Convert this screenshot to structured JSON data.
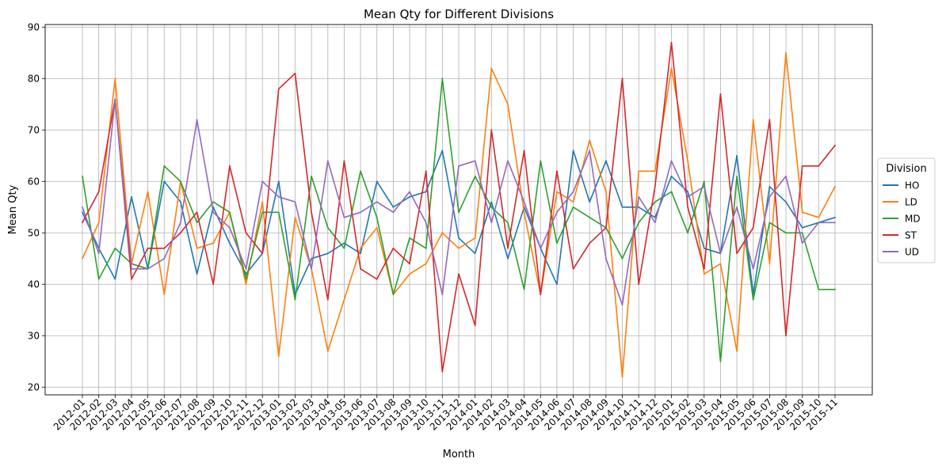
{
  "chart_data": {
    "type": "line",
    "title": "Mean Qty for Different Divisions",
    "xlabel": "Month",
    "ylabel": "Mean Qty",
    "ylim": [
      18.5,
      90.5
    ],
    "yticks": [
      20,
      30,
      40,
      50,
      60,
      70,
      80,
      90
    ],
    "grid": true,
    "legend_title": "Division",
    "legend_position": "center right, outside plot",
    "categories": [
      "2012-01",
      "2012-02",
      "2012-03",
      "2012-04",
      "2012-05",
      "2012-06",
      "2012-07",
      "2012-08",
      "2012-09",
      "2012-10",
      "2012-11",
      "2012-12",
      "2013-01",
      "2013-02",
      "2013-03",
      "2013-04",
      "2013-05",
      "2013-06",
      "2013-07",
      "2013-08",
      "2013-09",
      "2013-10",
      "2013-11",
      "2013-12",
      "2014-01",
      "2014-02",
      "2014-03",
      "2014-04",
      "2014-05",
      "2014-06",
      "2014-07",
      "2014-08",
      "2014-09",
      "2014-10",
      "2014-11",
      "2014-12",
      "2015-01",
      "2015-02",
      "2015-03",
      "2015-04",
      "2015-05",
      "2015-06",
      "2015-07",
      "2015-08",
      "2015-09",
      "2015-10",
      "2015-11"
    ],
    "series": [
      {
        "name": "HO",
        "color": "#1f77b4",
        "values": [
          54,
          47,
          41,
          57,
          43,
          60,
          56,
          42,
          55,
          48,
          42,
          46,
          60,
          38,
          45,
          46,
          48,
          46,
          60,
          55,
          57,
          58,
          66,
          49,
          46,
          56,
          45,
          55,
          47,
          40,
          66,
          56,
          64,
          55,
          55,
          53,
          61,
          58,
          47,
          46,
          65,
          38,
          59,
          56,
          51,
          52,
          53
        ]
      },
      {
        "name": "LD",
        "color": "#ff7f0e",
        "values": [
          45,
          52,
          80,
          44,
          58,
          38,
          60,
          47,
          48,
          54,
          40,
          56,
          26,
          53,
          43,
          27,
          37,
          47,
          51,
          38,
          42,
          44,
          50,
          47,
          49,
          82,
          75,
          54,
          38,
          58,
          56,
          68,
          58,
          22,
          62,
          62,
          82,
          64,
          42,
          44,
          27,
          72,
          44,
          85,
          54,
          53,
          59
        ]
      },
      {
        "name": "MD",
        "color": "#2ca02c",
        "values": [
          61,
          41,
          47,
          44,
          43,
          63,
          60,
          52,
          56,
          54,
          41,
          54,
          54,
          37,
          61,
          51,
          47,
          62,
          53,
          38,
          49,
          47,
          80,
          54,
          61,
          55,
          52,
          39,
          64,
          48,
          55,
          53,
          51,
          45,
          52,
          56,
          58,
          50,
          60,
          25,
          61,
          37,
          52,
          50,
          50,
          39,
          39
        ]
      },
      {
        "name": "ST",
        "color": "#d62728",
        "values": [
          52,
          58,
          76,
          41,
          47,
          47,
          50,
          54,
          40,
          63,
          50,
          46,
          78,
          81,
          54,
          37,
          64,
          43,
          41,
          47,
          44,
          62,
          23,
          42,
          32,
          70,
          47,
          66,
          38,
          62,
          43,
          48,
          51,
          80,
          40,
          59,
          87,
          55,
          43,
          77,
          46,
          51,
          72,
          30,
          63,
          63,
          67
        ]
      },
      {
        "name": "UD",
        "color": "#9467bd",
        "values": [
          55,
          46,
          76,
          43,
          43,
          45,
          52,
          72,
          54,
          51,
          43,
          60,
          57,
          56,
          43,
          64,
          53,
          54,
          56,
          54,
          58,
          52,
          38,
          63,
          64,
          52,
          64,
          56,
          47,
          54,
          58,
          66,
          45,
          36,
          57,
          52,
          64,
          57,
          59,
          46,
          55,
          43,
          57,
          61,
          48,
          52,
          52
        ]
      }
    ]
  }
}
